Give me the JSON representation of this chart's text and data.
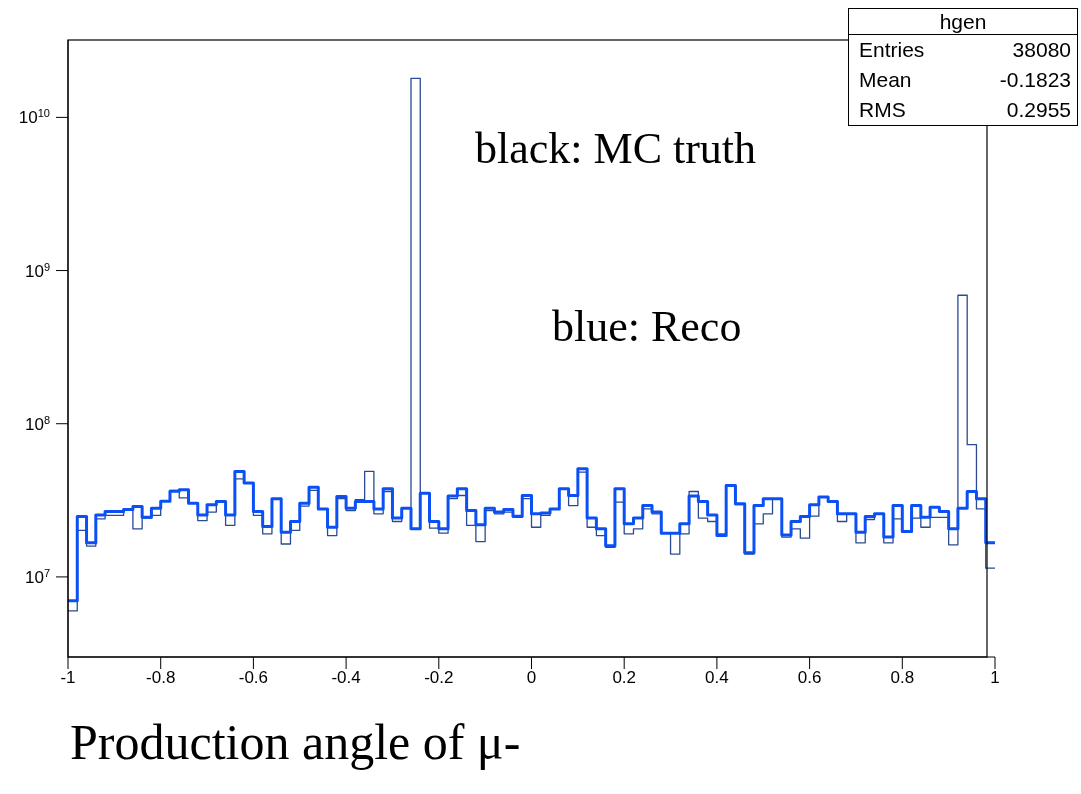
{
  "chart_data": {
    "type": "histogram",
    "xlabel": "Production angle of μ-",
    "bins": [
      -1,
      -0.98,
      -0.96,
      -0.94,
      -0.92,
      -0.9,
      -0.88,
      -0.86,
      -0.84,
      -0.82,
      -0.8,
      -0.78,
      -0.76,
      -0.74,
      -0.72,
      -0.7,
      -0.68,
      -0.66,
      -0.64,
      -0.62,
      -0.6,
      -0.58,
      -0.56,
      -0.54,
      -0.52,
      -0.5,
      -0.48,
      -0.46,
      -0.44,
      -0.42,
      -0.4,
      -0.38,
      -0.36,
      -0.34,
      -0.32,
      -0.3,
      -0.28,
      -0.26,
      -0.24,
      -0.22,
      -0.2,
      -0.18,
      -0.16,
      -0.14,
      -0.12,
      -0.1,
      -0.08,
      -0.06,
      -0.04,
      -0.02,
      0,
      0.02,
      0.04,
      0.06,
      0.08,
      0.1,
      0.12,
      0.14,
      0.16,
      0.18,
      0.2,
      0.22,
      0.24,
      0.26,
      0.28,
      0.3,
      0.32,
      0.34,
      0.36,
      0.38,
      0.4,
      0.42,
      0.44,
      0.46,
      0.48,
      0.5,
      0.52,
      0.54,
      0.56,
      0.58,
      0.6,
      0.62,
      0.64,
      0.66,
      0.68,
      0.7,
      0.72,
      0.74,
      0.76,
      0.78,
      0.8,
      0.82,
      0.84,
      0.86,
      0.88,
      0.9,
      0.92,
      0.94,
      0.96,
      0.98,
      1
    ],
    "series": [
      {
        "color": "#2b4a91",
        "values": [
          6000000,
          20100000,
          15900000,
          23900000,
          25200000,
          25200000,
          27500000,
          20600000,
          24200000,
          25200000,
          31200000,
          36700000,
          32800000,
          30300000,
          23300000,
          26500000,
          31100000,
          21700000,
          43700000,
          41000000,
          25200000,
          19100000,
          32400000,
          16400000,
          20100000,
          29000000,
          36700000,
          27800000,
          18600000,
          32400000,
          27100000,
          32000000,
          48800000,
          25800000,
          36100000,
          23000000,
          28100000,
          18000000000,
          35200000,
          20800000,
          19300000,
          32400000,
          34000000,
          21700000,
          17000000,
          27100000,
          25800000,
          26500000,
          24500000,
          32400000,
          21100000,
          25200000,
          27800000,
          37600000,
          29200000,
          48300000,
          21100000,
          18600000,
          15600000,
          30800000,
          19100000,
          20600000,
          27800000,
          25800000,
          19300000,
          14100000,
          19100000,
          36100000,
          24200000,
          23000000,
          19100000,
          39900000,
          29600000,
          14100000,
          22200000,
          25800000,
          32400000,
          18200000,
          20600000,
          17900000,
          24900000,
          33200000,
          31500000,
          23000000,
          25800000,
          16700000,
          23700000,
          25800000,
          16700000,
          23900000,
          19600000,
          24200000,
          21100000,
          24500000,
          24500000,
          16200000,
          690000000,
          73000000,
          27800000,
          11400000
        ]
      },
      {
        "color": "#0a50f5",
        "values": [
          7000000,
          24800000,
          16700000,
          25400000,
          26700000,
          26700000,
          27500000,
          28800000,
          24500000,
          28100000,
          31200000,
          36300000,
          37000000,
          30300000,
          25400000,
          29600000,
          31100000,
          25400000,
          48800000,
          41000000,
          26700000,
          21300000,
          32400000,
          19600000,
          23000000,
          30300000,
          38500000,
          27800000,
          21100000,
          33500000,
          28100000,
          31100000,
          31100000,
          27800000,
          37600000,
          24200000,
          28100000,
          20600000,
          35200000,
          23000000,
          20600000,
          33700000,
          37600000,
          27100000,
          21900000,
          28100000,
          26500000,
          27500000,
          24900000,
          34000000,
          25800000,
          26100000,
          27800000,
          37600000,
          34000000,
          50800000,
          24200000,
          20600000,
          16000000,
          37600000,
          22200000,
          24200000,
          29200000,
          26500000,
          19300000,
          19300000,
          22200000,
          33700000,
          31100000,
          25400000,
          18600000,
          39500000,
          30000000,
          14400000,
          29200000,
          32400000,
          32400000,
          18800000,
          23000000,
          24800000,
          29600000,
          33200000,
          31100000,
          25800000,
          25800000,
          19600000,
          24800000,
          25800000,
          18200000,
          29200000,
          19800000,
          29200000,
          24500000,
          28500000,
          26700000,
          20600000,
          28100000,
          36100000,
          32400000,
          16700000
        ]
      }
    ],
    "xlim": [
      -1,
      1
    ],
    "xticks": [
      -1,
      -0.8,
      -0.6,
      -0.4,
      -0.2,
      0,
      0.2,
      0.4,
      0.6,
      0.8,
      1
    ],
    "ylim": [
      3000000,
      32000000000
    ],
    "yticks": [
      {
        "value": 10000000,
        "label": "10$^{7}$"
      },
      {
        "value": 100000000,
        "label": "10$^{8}$"
      },
      {
        "value": 1000000000,
        "label": "10$^{9}$"
      },
      {
        "value": 10000000000,
        "label": "10$^{10}$"
      }
    ],
    "log": "y",
    "grid": false,
    "legend": false,
    "annotations": [
      "black: MC truth",
      "blue: Reco",
      "hgen",
      "Entries",
      "38080",
      "Mean",
      "-0.1823",
      "RMS",
      "0.2955"
    ]
  }
}
